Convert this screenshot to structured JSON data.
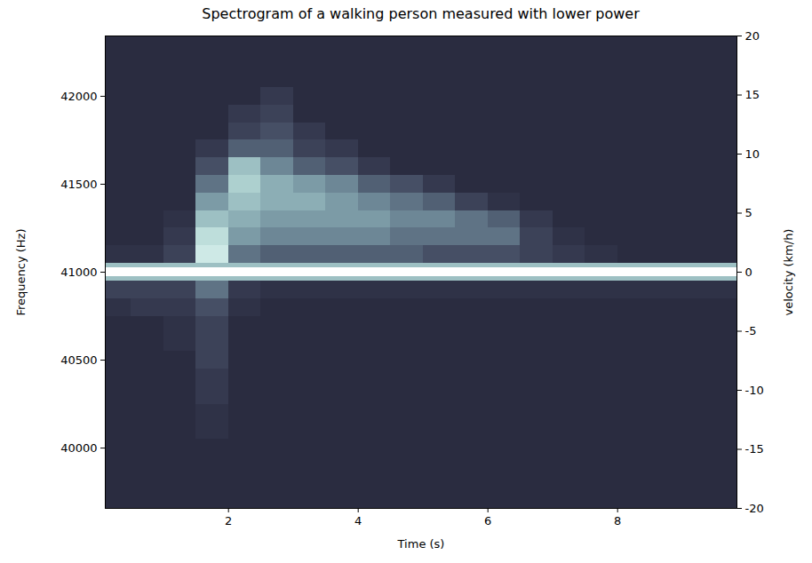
{
  "chart_data": {
    "type": "heatmap",
    "title": "Spectrogram of a walking person measured with lower power",
    "x_label": "Time (s)",
    "y_label": "Frequency (Hz)",
    "y2_label": "velocity (km/h)",
    "xlim": [
      0.1,
      9.84
    ],
    "xticks": [
      2,
      4,
      6,
      8
    ],
    "ylim": [
      39657,
      42343
    ],
    "yticks": [
      40000,
      40500,
      41000,
      41500,
      42000
    ],
    "y2lim": [
      -20,
      20
    ],
    "y2ticks": [
      -20,
      -15,
      -10,
      -5,
      0,
      5,
      10,
      15,
      20
    ],
    "x_bins": [
      0,
      0.5,
      1,
      1.5,
      2,
      2.5,
      3,
      3.5,
      4,
      4.5,
      5,
      5.5,
      6,
      6.5,
      7,
      7.5,
      8,
      8.5,
      9,
      9.5,
      10
    ],
    "y_bins": [
      39650,
      39750,
      39850,
      39950,
      40050,
      40150,
      40250,
      40350,
      40450,
      40550,
      40650,
      40750,
      40850,
      40950,
      40975,
      41025,
      41050,
      41150,
      41250,
      41350,
      41450,
      41550,
      41650,
      41750,
      41850,
      41950,
      42050,
      42150,
      42250,
      42350
    ],
    "values": [
      [
        1,
        1,
        1,
        1,
        1,
        1,
        1,
        1,
        1,
        1,
        1,
        1,
        1,
        1,
        1,
        1,
        1,
        1,
        1,
        1
      ],
      [
        1,
        1,
        1,
        1,
        1,
        1,
        1,
        1,
        1,
        1,
        1,
        1,
        1,
        1,
        1,
        1,
        1,
        1,
        1,
        1
      ],
      [
        1,
        1,
        1,
        1,
        1,
        1,
        1,
        1,
        1,
        1,
        1,
        1,
        1,
        1,
        1,
        1,
        1,
        1,
        1,
        1
      ],
      [
        1,
        1,
        1,
        1,
        1,
        1,
        1,
        1,
        1,
        1,
        1,
        1,
        1,
        1,
        1,
        1,
        1,
        1,
        1,
        1
      ],
      [
        1,
        1,
        1,
        1.5,
        1,
        1,
        1,
        1,
        1,
        1,
        1,
        1,
        1,
        1,
        1,
        1,
        1,
        1,
        1,
        1
      ],
      [
        1,
        1,
        1,
        1.5,
        1,
        1,
        1,
        1,
        1,
        1,
        1,
        1,
        1,
        1,
        1,
        1,
        1,
        1,
        1,
        1
      ],
      [
        1,
        1,
        1,
        2,
        1,
        1,
        1,
        1,
        1,
        1,
        1,
        1,
        1,
        1,
        1,
        1,
        1,
        1,
        1,
        1
      ],
      [
        1,
        1,
        1,
        2,
        1,
        1,
        1,
        1,
        1,
        1,
        1,
        1,
        1,
        1,
        1,
        1,
        1,
        1,
        1,
        1
      ],
      [
        1,
        1,
        1,
        2.5,
        1,
        1,
        1,
        1,
        1,
        1,
        1,
        1,
        1,
        1,
        1,
        1,
        1,
        1,
        1,
        1
      ],
      [
        1,
        1,
        1.5,
        2.5,
        1,
        1,
        1,
        1,
        1,
        1,
        1,
        1,
        1,
        1,
        1,
        1,
        1,
        1,
        1,
        1
      ],
      [
        1,
        1,
        1.5,
        2.5,
        1,
        1,
        1,
        1,
        1,
        1,
        1,
        1,
        1,
        1,
        1,
        1,
        1,
        1,
        1,
        1
      ],
      [
        1.5,
        2,
        2,
        3,
        1.5,
        1,
        1,
        1,
        1,
        1,
        1,
        1,
        1,
        1,
        1,
        1,
        1,
        1,
        1,
        1
      ],
      [
        2.5,
        2.5,
        2.5,
        4,
        2,
        1.5,
        1.5,
        1.5,
        1.5,
        1.5,
        1.5,
        1.5,
        1.5,
        1.5,
        1.5,
        1.5,
        1.5,
        1.5,
        1.5,
        1.5
      ],
      [
        6,
        6,
        6,
        6,
        6,
        6,
        6,
        6,
        6,
        6,
        6,
        6,
        6,
        6,
        6,
        6,
        6,
        6,
        6,
        6
      ],
      [
        10,
        10,
        10,
        10,
        10,
        10,
        10,
        10,
        10,
        10,
        10,
        10,
        10,
        10,
        10,
        10,
        10,
        10,
        10,
        10
      ],
      [
        6,
        6,
        6,
        6,
        6,
        6,
        6,
        6,
        6,
        6,
        6,
        6,
        6,
        6,
        6,
        6,
        6,
        6,
        6,
        6
      ],
      [
        1.5,
        1.5,
        2.5,
        7.5,
        4,
        3.5,
        3.5,
        3.5,
        3.5,
        3.5,
        3,
        3,
        3,
        2.5,
        2,
        1.5,
        1,
        1,
        1,
        1
      ],
      [
        1,
        1,
        2,
        7,
        5,
        4.5,
        4.5,
        4.5,
        4.5,
        4,
        4,
        4,
        4,
        2.5,
        1.5,
        1,
        1,
        1,
        1,
        1
      ],
      [
        1,
        1,
        1.5,
        6,
        5.5,
        5,
        5,
        5,
        5,
        4.5,
        4.5,
        4,
        3.5,
        2,
        1,
        1,
        1,
        1,
        1,
        1
      ],
      [
        1,
        1,
        1,
        5,
        6,
        5.5,
        5.5,
        5,
        4.5,
        4,
        3.5,
        2.5,
        1.5,
        1,
        1,
        1,
        1,
        1,
        1,
        1
      ],
      [
        1,
        1,
        1,
        4,
        6.5,
        5.5,
        5,
        4.5,
        3.5,
        3,
        2,
        1,
        1,
        1,
        1,
        1,
        1,
        1,
        1,
        1
      ],
      [
        1,
        1,
        1,
        3,
        6,
        4.5,
        3.5,
        3,
        2,
        1,
        1,
        1,
        1,
        1,
        1,
        1,
        1,
        1,
        1,
        1
      ],
      [
        1,
        1,
        1,
        2,
        3.5,
        3.5,
        2.5,
        2,
        1,
        1,
        1,
        1,
        1,
        1,
        1,
        1,
        1,
        1,
        1,
        1
      ],
      [
        1,
        1,
        1,
        1,
        2.5,
        3,
        2,
        1,
        1,
        1,
        1,
        1,
        1,
        1,
        1,
        1,
        1,
        1,
        1,
        1
      ],
      [
        1,
        1,
        1,
        1,
        2,
        2.5,
        1,
        1,
        1,
        1,
        1,
        1,
        1,
        1,
        1,
        1,
        1,
        1,
        1,
        1
      ],
      [
        1,
        1,
        1,
        1,
        1,
        2,
        1,
        1,
        1,
        1,
        1,
        1,
        1,
        1,
        1,
        1,
        1,
        1,
        1,
        1
      ],
      [
        1,
        1,
        1,
        1,
        1,
        1,
        1,
        1,
        1,
        1,
        1,
        1,
        1,
        1,
        1,
        1,
        1,
        1,
        1,
        1
      ],
      [
        1,
        1,
        1,
        1,
        1,
        1,
        1,
        1,
        1,
        1,
        1,
        1,
        1,
        1,
        1,
        1,
        1,
        1,
        1,
        1
      ],
      [
        1,
        1,
        1,
        1,
        1,
        1,
        1,
        1,
        1,
        1,
        1,
        1,
        1,
        1,
        1,
        1,
        1,
        1,
        1,
        1
      ]
    ]
  }
}
